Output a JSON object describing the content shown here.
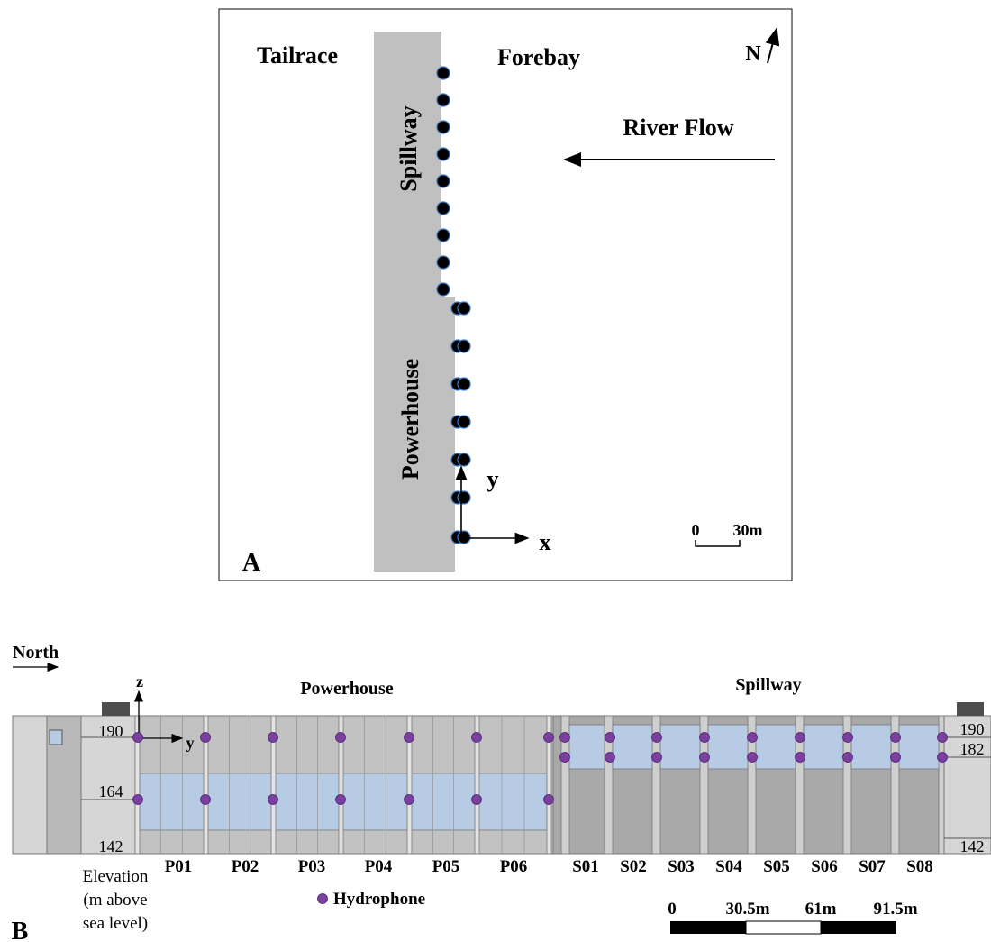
{
  "panel_a": {
    "panel_label": "A",
    "tailrace_label": "Tailrace",
    "forebay_label": "Forebay",
    "north_label": "N",
    "river_flow_label": "River Flow",
    "spillway_label": "Spillway",
    "powerhouse_label": "Powerhouse",
    "y_axis_label": "y",
    "x_axis_label": "x",
    "scale_zero": "0",
    "scale_value": "30m",
    "colors": {
      "dam": "#c0c0c0",
      "hydrophone_dot": "#000000",
      "dot_outline": "#3a78c4"
    }
  },
  "panel_b": {
    "panel_label": "B",
    "north_label": "North",
    "z_axis_label": "z",
    "y_axis_label": "y",
    "powerhouse_title": "Powerhouse",
    "spillway_title": "Spillway",
    "elevation_left": [
      "190",
      "164",
      "142"
    ],
    "elevation_right": [
      "190",
      "182",
      "142"
    ],
    "elevation_caption": [
      "Elevation",
      "(m above",
      "sea level)"
    ],
    "powerhouse_units": [
      "P01",
      "P02",
      "P03",
      "P04",
      "P05",
      "P06"
    ],
    "spillway_units": [
      "S01",
      "S02",
      "S03",
      "S04",
      "S05",
      "S06",
      "S07",
      "S08"
    ],
    "legend_label": "Hydrophone",
    "scale_labels": [
      "0",
      "30.5m",
      "61m",
      "91.5m"
    ],
    "colors": {
      "hydrophone": "#7b3fa0",
      "intake": "#b7cbe4",
      "structure": "#bdbdbd",
      "dark": "#a9a9a9"
    }
  }
}
